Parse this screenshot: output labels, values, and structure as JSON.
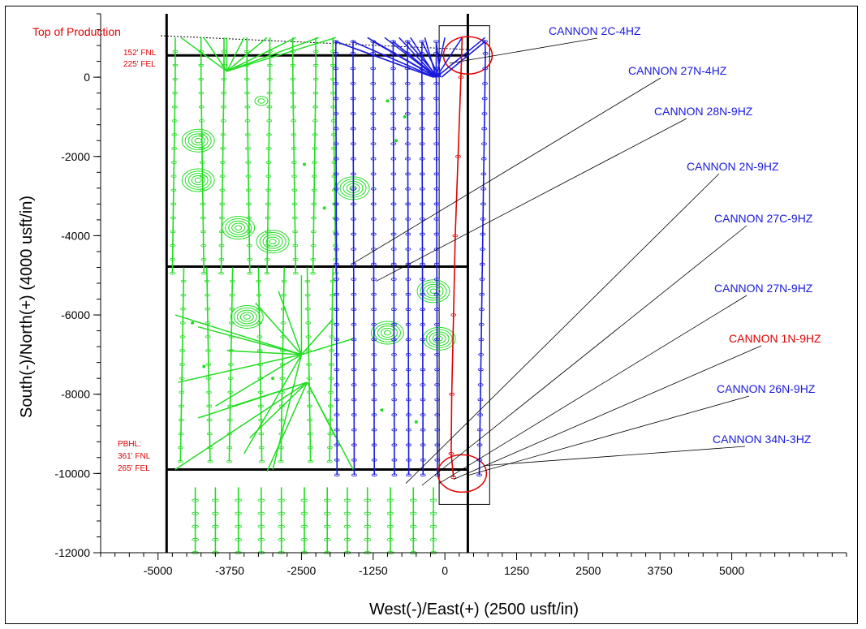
{
  "chart_data": {
    "type": "scatter",
    "xlabel": "West(-)/East(+) (2500 usft/in)",
    "ylabel": "South(-)/North(+) (4000 usft/in)",
    "xlim": [
      -6000,
      7000
    ],
    "ylim": [
      -12000,
      1600
    ],
    "x_ticks": [
      -5000,
      -3750,
      -2500,
      -1250,
      0,
      1250,
      2500,
      3750,
      5000
    ],
    "y_ticks": [
      0,
      -2000,
      -4000,
      -6000,
      -8000,
      -10000,
      -12000
    ],
    "colors": {
      "offset_wells": "#22dd22",
      "cannon_wells": "#1a1adc",
      "subject_well": "#e00000",
      "lease": "#000000"
    },
    "annotations": {
      "top_of_production": "Top of Production",
      "top_callout": [
        "152' FNL",
        "225' FEL"
      ],
      "pbhl_callout": [
        "PBHL:",
        "361' FNL",
        "265' FEL"
      ]
    },
    "well_labels": [
      {
        "text": "CANNON 2C-4HZ",
        "color": "#1a1adc",
        "target": [
          80,
          350
        ]
      },
      {
        "text": "CANNON 27N-4HZ",
        "color": "#1a1adc",
        "target": [
          -1600,
          -4700
        ]
      },
      {
        "text": "CANNON 28N-9HZ",
        "color": "#1a1adc",
        "target": [
          -1200,
          -5150
        ]
      },
      {
        "text": "CANNON 2N-9HZ",
        "color": "#1a1adc",
        "target": [
          -680,
          -10250
        ]
      },
      {
        "text": "CANNON 27C-9HZ",
        "color": "#1a1adc",
        "target": [
          -400,
          -10300
        ]
      },
      {
        "text": "CANNON 27N-9HZ",
        "color": "#1a1adc",
        "target": [
          -100,
          -10250
        ]
      },
      {
        "text": "CANNON 1N-9HZ",
        "color": "#e00000",
        "target": [
          150,
          -10150
        ]
      },
      {
        "text": "CANNON 26N-9HZ",
        "color": "#1a1adc",
        "target": [
          400,
          -10050
        ]
      },
      {
        "text": "CANNON 34N-3HZ",
        "color": "#1a1adc",
        "target": [
          700,
          -9800
        ]
      }
    ],
    "series": [
      {
        "name": "CANNON 1N-9HZ",
        "x": [
          300,
          250,
          200,
          150,
          120,
          100,
          100,
          120
        ],
        "y": [
          0,
          -1000,
          -3000,
          -5000,
          -7000,
          -8500,
          -9500,
          -10100
        ]
      },
      {
        "name": "CANNON 26N-9HZ",
        "x": [
          700,
          680,
          650,
          620,
          580
        ],
        "y": [
          900,
          -2000,
          -5000,
          -8000,
          -10150
        ]
      },
      {
        "name": "CANNON 2C-4HZ",
        "x": [
          0,
          50,
          80
        ],
        "y": [
          0,
          200,
          350
        ]
      }
    ],
    "hub_points": [
      [
        -100,
        0
      ],
      [
        -3800,
        150
      ],
      [
        -2500,
        -7000
      ],
      [
        -2400,
        -7700
      ]
    ]
  }
}
